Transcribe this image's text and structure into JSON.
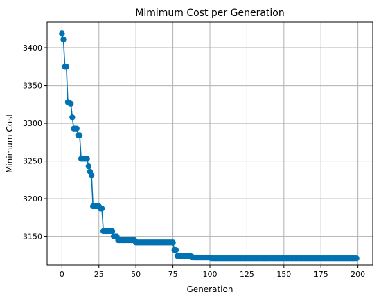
{
  "chart_data": {
    "type": "line",
    "title": "Mimimum Cost per Generation",
    "xlabel": "Generation",
    "ylabel": "Minimum Cost",
    "xlim": [
      -10,
      210
    ],
    "ylim": [
      3112,
      3434
    ],
    "xticks": [
      0,
      25,
      50,
      75,
      100,
      125,
      150,
      175,
      200
    ],
    "yticks": [
      3150,
      3200,
      3250,
      3300,
      3350,
      3400
    ],
    "grid": true,
    "series": [
      {
        "color": "#0072b2",
        "marker": "circle",
        "x": [
          0,
          1,
          2,
          3,
          4,
          5,
          6,
          7,
          8,
          9,
          10,
          11,
          12,
          13,
          14,
          15,
          16,
          17,
          18,
          19,
          20,
          21,
          22,
          23,
          24,
          25,
          26,
          27,
          28,
          29,
          30,
          31,
          32,
          33,
          34,
          35,
          36,
          37,
          38,
          39,
          40,
          41,
          42,
          43,
          44,
          45,
          46,
          47,
          48,
          49,
          50,
          51,
          52,
          53,
          54,
          55,
          56,
          57,
          58,
          59,
          60,
          61,
          62,
          63,
          64,
          65,
          66,
          67,
          68,
          69,
          70,
          71,
          72,
          73,
          74,
          75,
          76,
          77,
          78,
          79,
          80,
          81,
          82,
          83,
          84,
          85,
          86,
          87,
          88,
          89,
          90,
          91,
          92,
          93,
          94,
          95,
          96,
          97,
          98,
          99,
          100,
          101,
          102,
          103,
          104,
          105,
          106,
          107,
          108,
          109,
          110,
          111,
          112,
          113,
          114,
          115,
          116,
          117,
          118,
          119,
          120,
          121,
          122,
          123,
          124,
          125,
          126,
          127,
          128,
          129,
          130,
          131,
          132,
          133,
          134,
          135,
          136,
          137,
          138,
          139,
          140,
          141,
          142,
          143,
          144,
          145,
          146,
          147,
          148,
          149,
          150,
          151,
          152,
          153,
          154,
          155,
          156,
          157,
          158,
          159,
          160,
          161,
          162,
          163,
          164,
          165,
          166,
          167,
          168,
          169,
          170,
          171,
          172,
          173,
          174,
          175,
          176,
          177,
          178,
          179,
          180,
          181,
          182,
          183,
          184,
          185,
          186,
          187,
          188,
          189,
          190,
          191,
          192,
          193,
          194,
          195,
          196,
          197,
          198,
          199
        ],
        "y": [
          3419,
          3411,
          3375,
          3375,
          3328,
          3327,
          3326,
          3308,
          3293,
          3293,
          3293,
          3284,
          3284,
          3253,
          3253,
          3253,
          3253,
          3253,
          3243,
          3236,
          3231,
          3190,
          3190,
          3190,
          3190,
          3190,
          3187,
          3187,
          3157,
          3157,
          3157,
          3157,
          3157,
          3157,
          3157,
          3150,
          3150,
          3150,
          3145,
          3145,
          3145,
          3145,
          3145,
          3145,
          3145,
          3145,
          3145,
          3145,
          3145,
          3145,
          3142,
          3142,
          3142,
          3142,
          3142,
          3142,
          3142,
          3142,
          3142,
          3142,
          3142,
          3142,
          3142,
          3142,
          3142,
          3142,
          3142,
          3142,
          3142,
          3142,
          3142,
          3142,
          3142,
          3142,
          3142,
          3142,
          3132,
          3132,
          3124,
          3124,
          3124,
          3124,
          3124,
          3124,
          3124,
          3124,
          3124,
          3124,
          3123,
          3122,
          3122,
          3122,
          3122,
          3122,
          3122,
          3122,
          3122,
          3122,
          3122,
          3122,
          3122,
          3121,
          3121,
          3121,
          3121,
          3121,
          3121,
          3121,
          3121,
          3121,
          3121,
          3121,
          3121,
          3121,
          3121,
          3121,
          3121,
          3121,
          3121,
          3121,
          3121,
          3121,
          3121,
          3121,
          3121,
          3121,
          3121,
          3121,
          3121,
          3121,
          3121,
          3121,
          3121,
          3121,
          3121,
          3121,
          3121,
          3121,
          3121,
          3121,
          3121,
          3121,
          3121,
          3121,
          3121,
          3121,
          3121,
          3121,
          3121,
          3121,
          3121,
          3121,
          3121,
          3121,
          3121,
          3121,
          3121,
          3121,
          3121,
          3121,
          3121,
          3121,
          3121,
          3121,
          3121,
          3121,
          3121,
          3121,
          3121,
          3121,
          3121,
          3121,
          3121,
          3121,
          3121,
          3121,
          3121,
          3121,
          3121,
          3121,
          3121,
          3121,
          3121,
          3121,
          3121,
          3121,
          3121,
          3121,
          3121,
          3121,
          3121,
          3121,
          3121,
          3121,
          3121,
          3121,
          3121,
          3121,
          3121,
          3121
        ]
      }
    ]
  }
}
